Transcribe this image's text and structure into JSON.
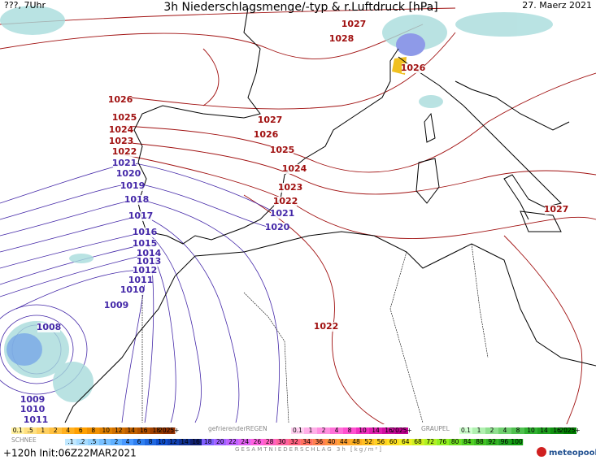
{
  "header": {
    "run": "???, 7Uhr",
    "title": "3h Niederschlagsmenge/-typ & r.Luftdruck [hPa]",
    "date": "27. Maerz 2021"
  },
  "isobars": {
    "high": {
      "color": "#a01010",
      "labels": [
        "1027",
        "1028",
        "1026",
        "1026",
        "1025",
        "1027",
        "1024",
        "1026",
        "1023",
        "1025",
        "1022",
        "1024",
        "1023",
        "1022",
        "1022",
        "1027"
      ]
    },
    "low": {
      "color": "#4428a8",
      "labels": [
        "1021",
        "1020",
        "1019",
        "1018",
        "1017",
        "1021",
        "1020",
        "1016",
        "1015",
        "1014",
        "1013",
        "1012",
        "1011",
        "1010",
        "1009",
        "1008",
        "1009",
        "1010",
        "1011"
      ]
    }
  },
  "legend": {
    "rain": {
      "labels": [
        "0.1",
        ".5",
        "1",
        "2",
        "4",
        "6",
        "8",
        "10",
        "12",
        "14",
        "16",
        "18",
        "2025+"
      ],
      "colors": [
        "#fff0a0",
        "#ffe080",
        "#ffd060",
        "#ffc040",
        "#ffb020",
        "#ffa000",
        "#f09000",
        "#e08000",
        "#d07000",
        "#c06000",
        "#b05000",
        "#a04000",
        "#903000"
      ]
    },
    "freezing": {
      "name": "gefrierenderREGEN",
      "labels": [
        "0.1",
        "1",
        "2",
        "4",
        "8",
        "10",
        "14",
        "16",
        "2025+"
      ],
      "colors": [
        "#ffd0f0",
        "#ffb0e8",
        "#ff90e0",
        "#ff70d8",
        "#ff50d0",
        "#f030c0",
        "#e020b0",
        "#d010a0",
        "#c00090"
      ]
    },
    "graupel": {
      "name": "GRAUPEL",
      "labels": [
        "0.1",
        "1",
        "2",
        "4",
        "8",
        "10",
        "14",
        "16",
        "2025+"
      ],
      "colors": [
        "#d0ffd0",
        "#b0f0b0",
        "#90e090",
        "#70d070",
        "#50c050",
        "#30b030",
        "#20a020",
        "#109010",
        "#008000"
      ]
    },
    "snow": {
      "name": "SCHNEE",
      "labels": [
        ".1",
        ".2",
        ".5",
        "1",
        "2",
        "4",
        "6",
        "8",
        "10",
        "12",
        "14",
        "16"
      ],
      "colors": [
        "#c0e8ff",
        "#a8dcff",
        "#90d0ff",
        "#78c0ff",
        "#60b0ff",
        "#4898ff",
        "#3080f0",
        "#2068e0",
        "#1050d0",
        "#1040b0",
        "#103090",
        "#102070"
      ]
    },
    "total": {
      "name": "GESAMTNIEDERSCHLAG 3h [kg/m²]",
      "labels": [
        "18",
        "20",
        "22",
        "24",
        "26",
        "28",
        "30",
        "32",
        "34",
        "36",
        "40",
        "44",
        "48",
        "52",
        "56",
        "60",
        "64",
        "68",
        "72",
        "76",
        "80",
        "84",
        "88",
        "92",
        "96",
        "100"
      ],
      "colors": [
        "#8060ff",
        "#a060ff",
        "#c060ff",
        "#e060f0",
        "#ff60e0",
        "#ff60c0",
        "#ff60a0",
        "#ff6080",
        "#ff7060",
        "#ff8050",
        "#ff9040",
        "#ffa030",
        "#ffb020",
        "#ffc020",
        "#ffd020",
        "#ffe020",
        "#f0f020",
        "#d0f020",
        "#b0f020",
        "#90f020",
        "#70e020",
        "#50d020",
        "#40c020",
        "#30b020",
        "#20a020",
        "#10a010"
      ]
    }
  },
  "footer": {
    "run": "+120h Init:06Z22MAR2021",
    "brand": "meteopool.org"
  }
}
